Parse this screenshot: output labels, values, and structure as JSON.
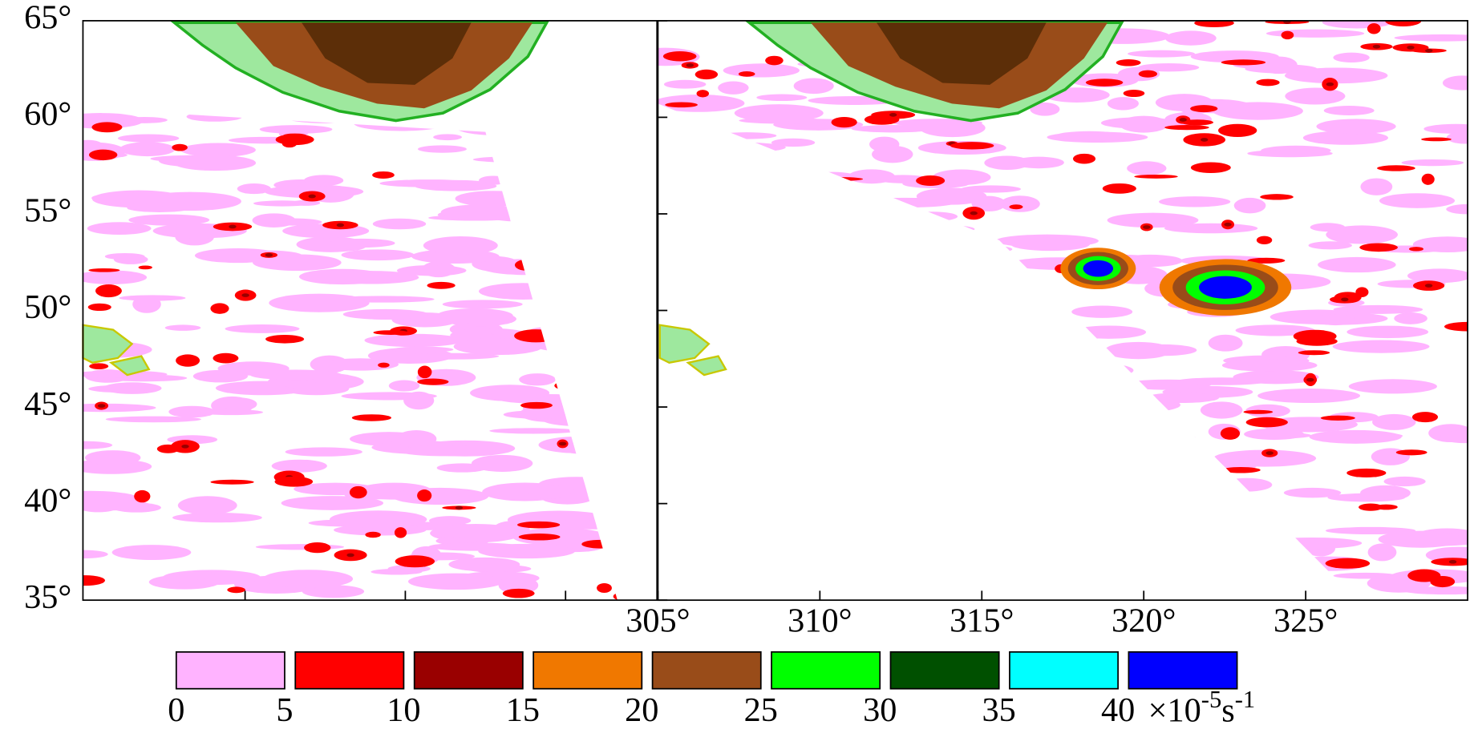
{
  "chart_data": {
    "type": "map",
    "ylim": [
      35,
      65
    ],
    "yticks": [
      {
        "value": 35,
        "label": "35°"
      },
      {
        "value": 40,
        "label": "40°"
      },
      {
        "value": 45,
        "label": "45°"
      },
      {
        "value": 50,
        "label": "50°"
      },
      {
        "value": 55,
        "label": "55°"
      },
      {
        "value": 60,
        "label": "60°"
      },
      {
        "value": 65,
        "label": "65°"
      }
    ],
    "xlim": [
      305,
      330
    ],
    "xticks": [
      {
        "value": 305,
        "label": "305°"
      },
      {
        "value": 310,
        "label": "310°"
      },
      {
        "value": 315,
        "label": "315°"
      },
      {
        "value": 320,
        "label": "320°"
      },
      {
        "value": 325,
        "label": "325°"
      }
    ],
    "colorbar": {
      "bounds": [
        0,
        5,
        10,
        15,
        20,
        25,
        30,
        35,
        40
      ],
      "colors": [
        "#ffb3ff",
        "#ff0000",
        "#990000",
        "#f07800",
        "#994c19",
        "#00ff00",
        "#005000",
        "#00ffff",
        "#0000ff"
      ]
    },
    "unit": {
      "prefix": "×10",
      "exponent": "-5",
      "unit": "s",
      "unit_exponent": "-1"
    }
  }
}
